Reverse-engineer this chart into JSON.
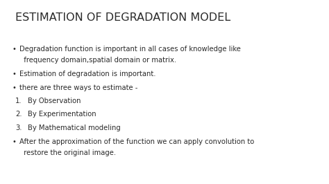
{
  "title": "ESTIMATION OF DEGRADATION MODEL",
  "title_fontsize": 11.5,
  "background_color": "#ffffff",
  "text_color": "#2a2a2a",
  "body_fontsize": 7.2,
  "font_family": "DejaVu Sans",
  "items": [
    {
      "type": "bullet",
      "lines": [
        "Degradation function is important in all cases of knowledge like",
        "  frequency domain,spatial domain or matrix."
      ]
    },
    {
      "type": "bullet",
      "lines": [
        "Estimation of degradation is important."
      ]
    },
    {
      "type": "bullet",
      "lines": [
        "there are three ways to estimate -"
      ]
    },
    {
      "type": "numbered",
      "number": "1.",
      "lines": [
        "By Observation"
      ]
    },
    {
      "type": "numbered",
      "number": "2.",
      "lines": [
        "By Experimentation"
      ]
    },
    {
      "type": "numbered",
      "number": "3.",
      "lines": [
        "By Mathematical modeling"
      ]
    },
    {
      "type": "bullet",
      "lines": [
        "After the approximation of the function we can apply convolution to",
        "  restore the original image."
      ]
    }
  ]
}
